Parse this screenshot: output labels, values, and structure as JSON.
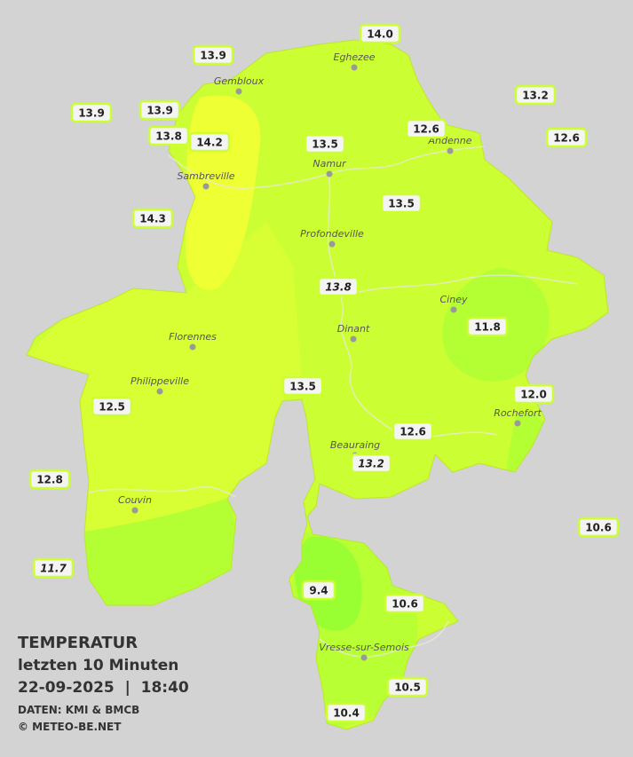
{
  "title": {
    "heading": "TEMPERATUR",
    "period": "letzten 10 Minuten",
    "timestamp": "22-09-2025  |  18:40",
    "source": "DATEN: KMI & BMCB",
    "copyright": "© METEO-BE.NET"
  },
  "cities": [
    {
      "label": "Eghezee"
    },
    {
      "label": "Gembloux"
    },
    {
      "label": "Andenne"
    },
    {
      "label": "Namur"
    },
    {
      "label": "Sambreville"
    },
    {
      "label": "Profondeville"
    },
    {
      "label": "Ciney"
    },
    {
      "label": "Dinant"
    },
    {
      "label": "Florennes"
    },
    {
      "label": "Philippeville"
    },
    {
      "label": "Rochefort"
    },
    {
      "label": "Beauraing"
    },
    {
      "label": "Couvin"
    },
    {
      "label": "Vresse-sur-Semois"
    }
  ],
  "stations": [
    {
      "label": "14.0"
    },
    {
      "label": "13.9"
    },
    {
      "label": "13.2"
    },
    {
      "label": "13.9"
    },
    {
      "label": "13.9"
    },
    {
      "label": "12.6"
    },
    {
      "label": "12.6"
    },
    {
      "label": "13.8"
    },
    {
      "label": "14.2"
    },
    {
      "label": "13.5"
    },
    {
      "label": "14.3"
    },
    {
      "label": "13.5"
    },
    {
      "label": "13.8",
      "italic": true
    },
    {
      "label": "11.8"
    },
    {
      "label": "13.5"
    },
    {
      "label": "12.0"
    },
    {
      "label": "12.5"
    },
    {
      "label": "12.6"
    },
    {
      "label": "13.2",
      "italic": true
    },
    {
      "label": "12.8"
    },
    {
      "label": "10.6"
    },
    {
      "label": "11.7",
      "italic": true
    },
    {
      "label": "9.4"
    },
    {
      "label": "10.6"
    },
    {
      "label": "10.5"
    },
    {
      "label": "10.4"
    }
  ]
}
